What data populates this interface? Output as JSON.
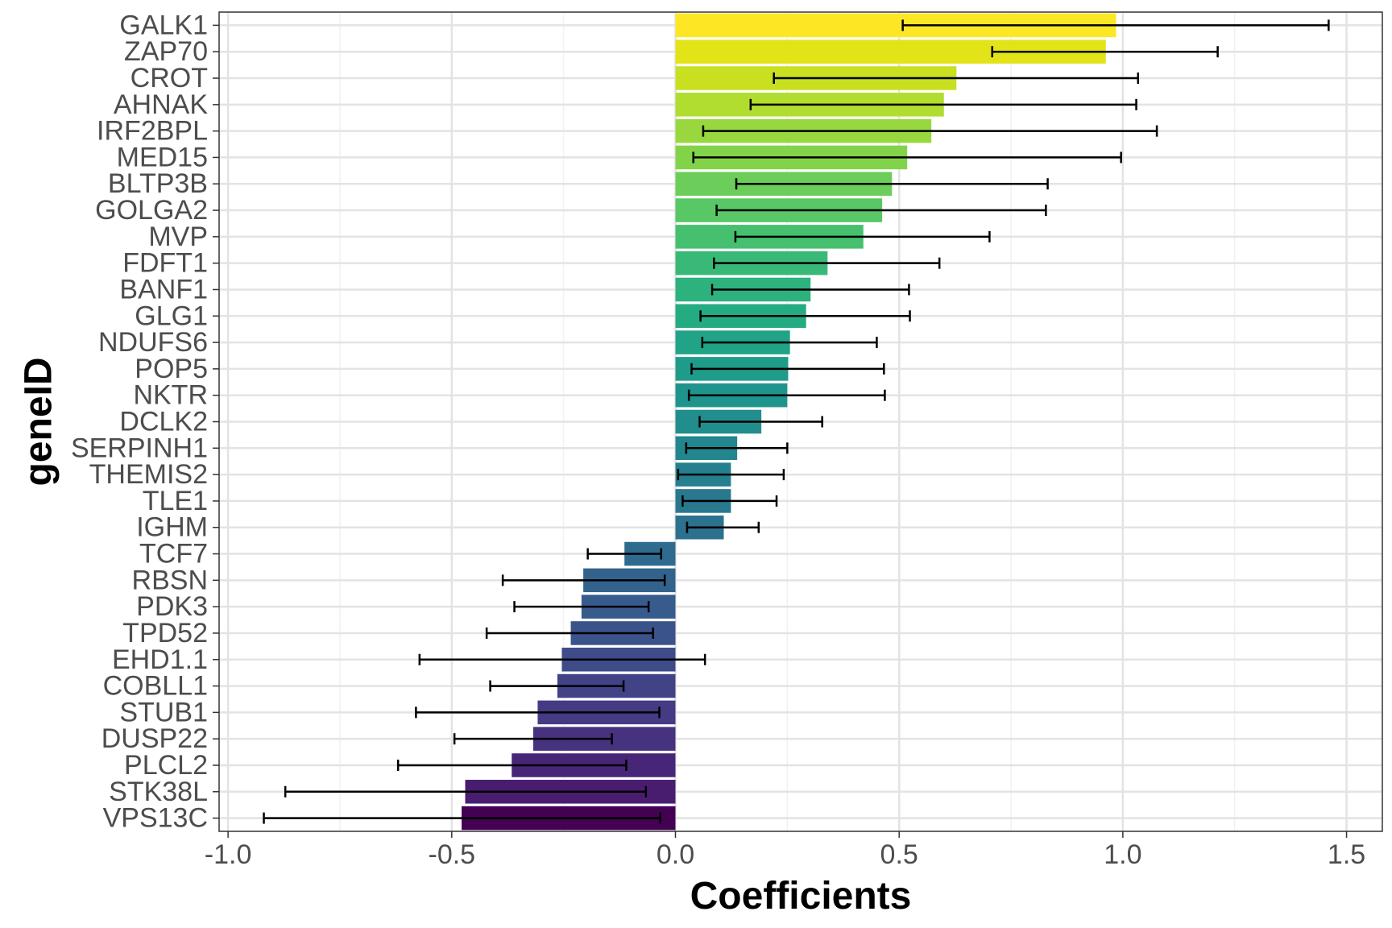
{
  "chart_data": {
    "type": "bar",
    "orientation": "horizontal",
    "xlabel": "Coefficients",
    "ylabel": "geneID",
    "xlim": [
      -1.02,
      1.58
    ],
    "x_ticks": [
      -1.0,
      -0.5,
      0.0,
      0.5,
      1.0,
      1.5
    ],
    "x_tick_labels": [
      "-1.0",
      "-0.5",
      "0.0",
      "0.5",
      "1.0",
      "1.5"
    ],
    "grid": true,
    "legend": "none",
    "colormap": "viridis",
    "categories": [
      "GALK1",
      "ZAP70",
      "CROT",
      "AHNAK",
      "IRF2BPL",
      "MED15",
      "BLTP3B",
      "GOLGA2",
      "MVP",
      "FDFT1",
      "BANF1",
      "GLG1",
      "NDUFS6",
      "POP5",
      "NKTR",
      "DCLK2",
      "SERPINH1",
      "THEMIS2",
      "TLE1",
      "IGHM",
      "TCF7",
      "RBSN",
      "PDK3",
      "TPD52",
      "EHD1.1",
      "COBLL1",
      "STUB1",
      "DUSP22",
      "PLCL2",
      "STK38L",
      "VPS13C"
    ],
    "values": [
      0.985,
      0.962,
      0.628,
      0.6,
      0.572,
      0.518,
      0.484,
      0.462,
      0.42,
      0.34,
      0.302,
      0.292,
      0.256,
      0.252,
      0.25,
      0.192,
      0.138,
      0.124,
      0.124,
      0.108,
      -0.114,
      -0.206,
      -0.21,
      -0.234,
      -0.254,
      -0.264,
      -0.308,
      -0.318,
      -0.366,
      -0.47,
      -0.478
    ],
    "error_low": [
      0.508,
      0.708,
      0.22,
      0.168,
      0.062,
      0.04,
      0.136,
      0.092,
      0.134,
      0.086,
      0.082,
      0.056,
      0.06,
      0.036,
      0.03,
      0.054,
      0.024,
      0.006,
      0.016,
      0.026,
      -0.196,
      -0.386,
      -0.36,
      -0.422,
      -0.572,
      -0.414,
      -0.58,
      -0.494,
      -0.62,
      -0.872,
      -0.92
    ],
    "error_high": [
      1.46,
      1.212,
      1.034,
      1.03,
      1.076,
      0.996,
      0.832,
      0.828,
      0.702,
      0.59,
      0.522,
      0.524,
      0.45,
      0.466,
      0.468,
      0.328,
      0.25,
      0.242,
      0.226,
      0.186,
      -0.032,
      -0.024,
      -0.06,
      -0.05,
      0.066,
      -0.116,
      -0.036,
      -0.142,
      -0.11,
      -0.066,
      -0.034
    ],
    "colors": [
      "#fde725",
      "#e2e418",
      "#c8e020",
      "#b0dd2f",
      "#98d83e",
      "#82d34a",
      "#6ccd5a",
      "#58c765",
      "#46c06f",
      "#38b977",
      "#2db27d",
      "#25ab82",
      "#20a386",
      "#1e9c89",
      "#1f948c",
      "#218e8d",
      "#23868e",
      "#267f8e",
      "#29788e",
      "#2c718e",
      "#2f6b8e",
      "#33638d",
      "#375b8d",
      "#3a538b",
      "#3e4c8a",
      "#424387",
      "#453a84",
      "#46327e",
      "#482677",
      "#481d6f",
      "#440154"
    ]
  }
}
